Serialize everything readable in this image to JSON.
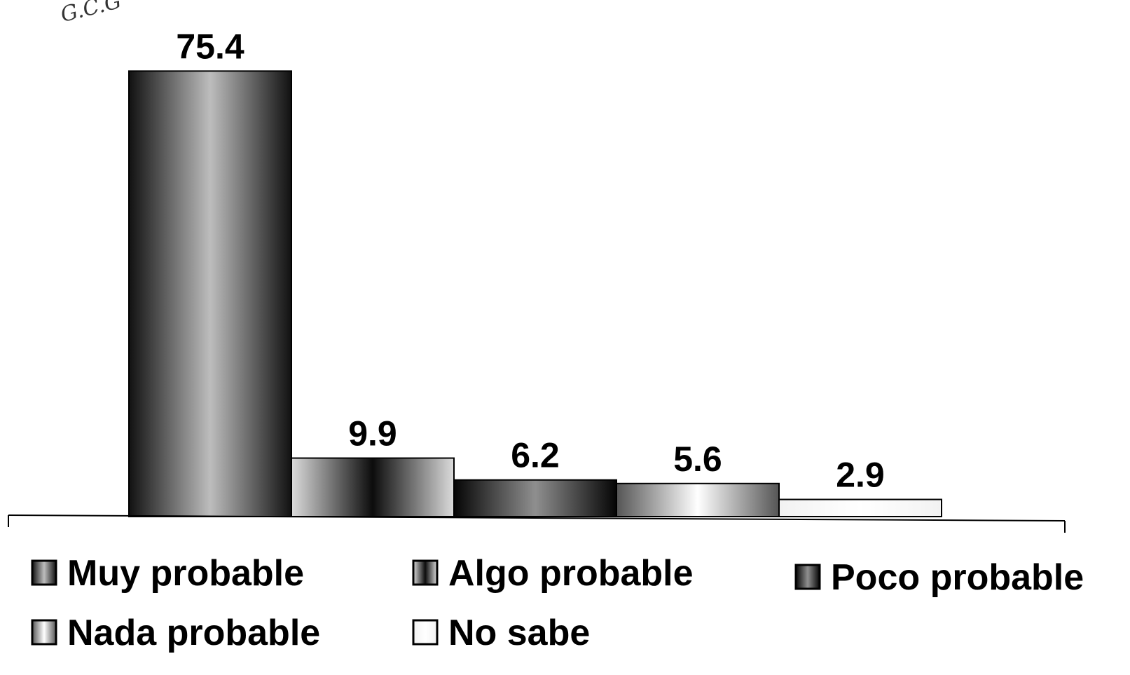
{
  "chart_data": {
    "type": "bar",
    "categories": [
      "Muy probable",
      "Algo probable",
      "Poco probable",
      "Nada probable",
      "No sabe"
    ],
    "values": [
      75.4,
      9.9,
      6.2,
      5.6,
      2.9
    ],
    "value_labels": [
      "75.4",
      "9.9",
      "6.2",
      "5.6",
      "2.9"
    ],
    "title": "",
    "xlabel": "",
    "ylabel": "",
    "ylim": [
      0,
      80
    ],
    "grid": false,
    "legend_position": "bottom",
    "legend": [
      "Muy probable",
      "Algo probable",
      "Poco probable",
      "Nada probable",
      "No sabe"
    ],
    "styles": [
      {
        "edge": "#111111",
        "core": "#bdbdbd",
        "legend_swatch": "#555555"
      },
      {
        "edge": "#dcdcdc",
        "core": "#0c0c0c",
        "legend_swatch": "#777777"
      },
      {
        "edge": "#050505",
        "core": "#8f8f8f",
        "legend_swatch": "#2a2a2a"
      },
      {
        "edge": "#555555",
        "core": "#ffffff",
        "legend_swatch": "#ffffff"
      },
      {
        "edge": "#f2f2f2",
        "core": "#ffffff",
        "legend_swatch": "#ffffff"
      }
    ]
  },
  "annotation": "G.C.G"
}
